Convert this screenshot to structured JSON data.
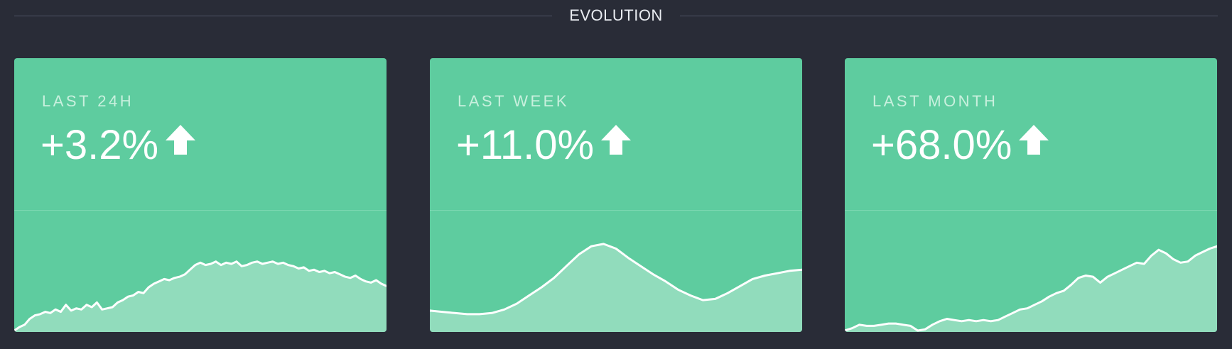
{
  "section": {
    "title": "EVOLUTION"
  },
  "colors": {
    "background": "#292c37",
    "card": "#5ecc9f",
    "area_fill": "#91dcbc",
    "line": "#ffffff",
    "label": "#c9f0de"
  },
  "cards": [
    {
      "label": "LAST 24H",
      "value": "+3.2%",
      "trend_icon": "arrow-up-icon",
      "chart_data": {
        "type": "area",
        "series": [
          0.0,
          0.03,
          0.05,
          0.1,
          0.13,
          0.14,
          0.16,
          0.15,
          0.18,
          0.16,
          0.22,
          0.17,
          0.19,
          0.18,
          0.22,
          0.2,
          0.24,
          0.18,
          0.19,
          0.2,
          0.24,
          0.26,
          0.29,
          0.3,
          0.33,
          0.32,
          0.37,
          0.4,
          0.42,
          0.44,
          0.43,
          0.45,
          0.46,
          0.48,
          0.52,
          0.56,
          0.58,
          0.56,
          0.57,
          0.59,
          0.56,
          0.58,
          0.57,
          0.59,
          0.55,
          0.56,
          0.58,
          0.59,
          0.57,
          0.58,
          0.59,
          0.57,
          0.58,
          0.56,
          0.55,
          0.53,
          0.54,
          0.51,
          0.52,
          0.5,
          0.51,
          0.49,
          0.5,
          0.48,
          0.46,
          0.45,
          0.47,
          0.44,
          0.42,
          0.41,
          0.43,
          0.4,
          0.38
        ]
      }
    },
    {
      "label": "LAST WEEK",
      "value": "+11.0%",
      "trend_icon": "arrow-up-icon",
      "chart_data": {
        "type": "area",
        "series": [
          0.17,
          0.16,
          0.15,
          0.14,
          0.14,
          0.15,
          0.18,
          0.23,
          0.3,
          0.37,
          0.45,
          0.55,
          0.65,
          0.72,
          0.74,
          0.7,
          0.62,
          0.55,
          0.48,
          0.42,
          0.35,
          0.3,
          0.26,
          0.27,
          0.32,
          0.38,
          0.44,
          0.47,
          0.49,
          0.51,
          0.52
        ]
      }
    },
    {
      "label": "LAST MONTH",
      "value": "+68.0%",
      "trend_icon": "arrow-up-icon",
      "chart_data": {
        "type": "area",
        "series": [
          0.0,
          0.02,
          0.05,
          0.04,
          0.04,
          0.05,
          0.06,
          0.06,
          0.05,
          0.04,
          0.0,
          0.01,
          0.05,
          0.08,
          0.1,
          0.09,
          0.08,
          0.09,
          0.08,
          0.09,
          0.08,
          0.09,
          0.12,
          0.15,
          0.18,
          0.19,
          0.22,
          0.25,
          0.29,
          0.32,
          0.34,
          0.39,
          0.45,
          0.47,
          0.46,
          0.41,
          0.46,
          0.49,
          0.52,
          0.55,
          0.58,
          0.57,
          0.64,
          0.69,
          0.66,
          0.61,
          0.58,
          0.59,
          0.64,
          0.67,
          0.7,
          0.72
        ]
      }
    }
  ]
}
